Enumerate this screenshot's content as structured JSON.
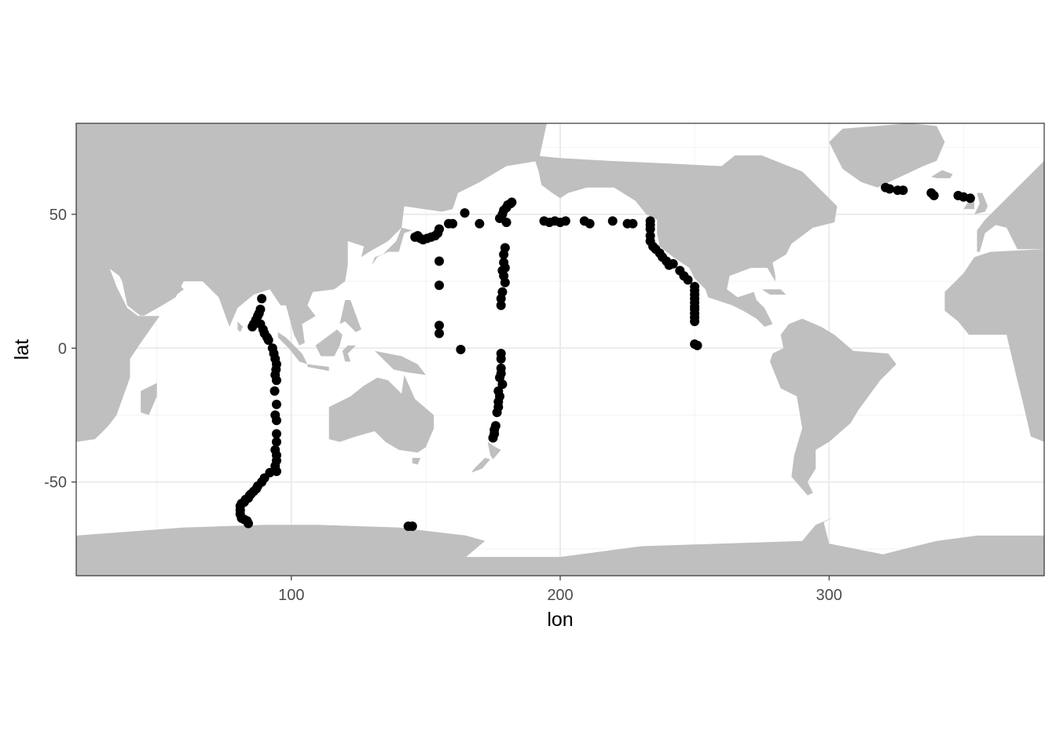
{
  "chart_data": {
    "type": "scatter",
    "title": "",
    "xlabel": "lon",
    "ylabel": "lat",
    "xlim": [
      20,
      380
    ],
    "ylim": [
      -85,
      84
    ],
    "x_ticks": [
      100,
      200,
      300
    ],
    "y_ticks": [
      -50,
      0,
      50
    ],
    "x_tick_labels": [
      "100",
      "200",
      "300"
    ],
    "y_tick_labels": [
      "-50",
      "0",
      "50"
    ],
    "grid": true,
    "legend": "none",
    "colors": {
      "points": "#000000",
      "land": "#bfbfbf",
      "grid_major": "#ebebeb",
      "grid_minor": "#f2f2f2",
      "panel_border": "#333333",
      "tick_text": "#4d4d4d"
    },
    "background_layer": "world land mask (grey)",
    "points": [
      [
        89,
        18.5
      ],
      [
        88.5,
        14.5
      ],
      [
        88,
        13
      ],
      [
        87.5,
        12
      ],
      [
        86.8,
        10.5
      ],
      [
        86,
        9
      ],
      [
        85.5,
        8
      ],
      [
        87,
        9.5
      ],
      [
        88.5,
        9
      ],
      [
        89.5,
        7
      ],
      [
        90,
        5.5
      ],
      [
        91,
        4
      ],
      [
        91.5,
        3
      ],
      [
        93,
        0
      ],
      [
        93.5,
        -2
      ],
      [
        94,
        -4
      ],
      [
        94.5,
        -6
      ],
      [
        94.3,
        -8
      ],
      [
        94,
        -10
      ],
      [
        94.5,
        -12
      ],
      [
        93.8,
        -16
      ],
      [
        94.5,
        -21
      ],
      [
        94,
        -25
      ],
      [
        94.5,
        -27
      ],
      [
        94.5,
        -32
      ],
      [
        94.5,
        -35
      ],
      [
        94,
        -38
      ],
      [
        94.5,
        -40
      ],
      [
        94.5,
        -42
      ],
      [
        94,
        -44
      ],
      [
        94.5,
        -46
      ],
      [
        92,
        -46.5
      ],
      [
        90,
        -48.5
      ],
      [
        89,
        -50
      ],
      [
        87.5,
        -51.5
      ],
      [
        87,
        -52.5
      ],
      [
        86,
        -53.5
      ],
      [
        85,
        -54.5
      ],
      [
        84.5,
        -55
      ],
      [
        84,
        -56
      ],
      [
        83,
        -56.5
      ],
      [
        82.5,
        -57.5
      ],
      [
        81.5,
        -58
      ],
      [
        81,
        -59
      ],
      [
        81,
        -60.5
      ],
      [
        81,
        -62
      ],
      [
        81.5,
        -63.5
      ],
      [
        82.5,
        -64
      ],
      [
        83.5,
        -64.5
      ],
      [
        84,
        -65.5
      ],
      [
        143.5,
        -66.5
      ],
      [
        145,
        -66.5
      ],
      [
        146,
        41.5
      ],
      [
        147,
        42
      ],
      [
        148,
        41
      ],
      [
        149,
        40.5
      ],
      [
        150.5,
        41
      ],
      [
        152,
        41.5
      ],
      [
        153.5,
        42
      ],
      [
        154.5,
        43
      ],
      [
        155,
        44.5
      ],
      [
        155,
        32.5
      ],
      [
        155,
        23.5
      ],
      [
        155,
        8.5
      ],
      [
        155,
        5.5
      ],
      [
        158.5,
        46.5
      ],
      [
        160,
        46.5
      ],
      [
        163,
        -0.5
      ],
      [
        164.5,
        50.5
      ],
      [
        170,
        46.5
      ],
      [
        177.5,
        48.5
      ],
      [
        178.5,
        50
      ],
      [
        179,
        51.5
      ],
      [
        180,
        52.5
      ],
      [
        180.5,
        53.5
      ],
      [
        181.5,
        54
      ],
      [
        182,
        54.5
      ],
      [
        180,
        47
      ],
      [
        179.5,
        37.5
      ],
      [
        179,
        35
      ],
      [
        179,
        32
      ],
      [
        179.5,
        30
      ],
      [
        178.5,
        29
      ],
      [
        179,
        27
      ],
      [
        179.5,
        24.5
      ],
      [
        178.5,
        21
      ],
      [
        178,
        18.5
      ],
      [
        178,
        16
      ],
      [
        178,
        -2
      ],
      [
        178,
        -4
      ],
      [
        178,
        -7.5
      ],
      [
        178,
        -9.5
      ],
      [
        177.5,
        -11
      ],
      [
        178.5,
        -13.5
      ],
      [
        177,
        -16
      ],
      [
        177.5,
        -18
      ],
      [
        177,
        -20
      ],
      [
        177,
        -22
      ],
      [
        176.5,
        -24
      ],
      [
        176,
        -29
      ],
      [
        175.5,
        -30.5
      ],
      [
        175.5,
        -32
      ],
      [
        175,
        -33.5
      ],
      [
        194,
        47.5
      ],
      [
        196,
        47
      ],
      [
        198,
        47.5
      ],
      [
        200,
        47
      ],
      [
        202,
        47.5
      ],
      [
        209,
        47.5
      ],
      [
        211,
        46.5
      ],
      [
        219.5,
        47.5
      ],
      [
        225,
        46.5
      ],
      [
        227,
        46.5
      ],
      [
        233.5,
        47.5
      ],
      [
        233.5,
        46
      ],
      [
        233.5,
        44.5
      ],
      [
        233.5,
        42
      ],
      [
        233.5,
        40
      ],
      [
        234.5,
        38
      ],
      [
        235.5,
        37
      ],
      [
        237,
        35.5
      ],
      [
        238,
        34
      ],
      [
        239.5,
        32.5
      ],
      [
        240.5,
        31
      ],
      [
        242,
        31.5
      ],
      [
        244.5,
        29
      ],
      [
        246,
        27
      ],
      [
        247.5,
        25.5
      ],
      [
        250,
        23
      ],
      [
        250,
        21.5
      ],
      [
        250,
        20
      ],
      [
        250,
        18.5
      ],
      [
        250,
        17
      ],
      [
        250,
        15.5
      ],
      [
        250,
        14.5
      ],
      [
        250,
        13
      ],
      [
        250,
        11.5
      ],
      [
        250,
        10
      ],
      [
        250,
        1.5
      ],
      [
        251,
        1
      ],
      [
        321,
        60
      ],
      [
        322.5,
        59.5
      ],
      [
        325.5,
        59
      ],
      [
        327.5,
        59
      ],
      [
        338,
        58
      ],
      [
        339,
        57
      ],
      [
        348,
        57
      ],
      [
        350,
        56.5
      ],
      [
        352.5,
        56
      ]
    ]
  }
}
